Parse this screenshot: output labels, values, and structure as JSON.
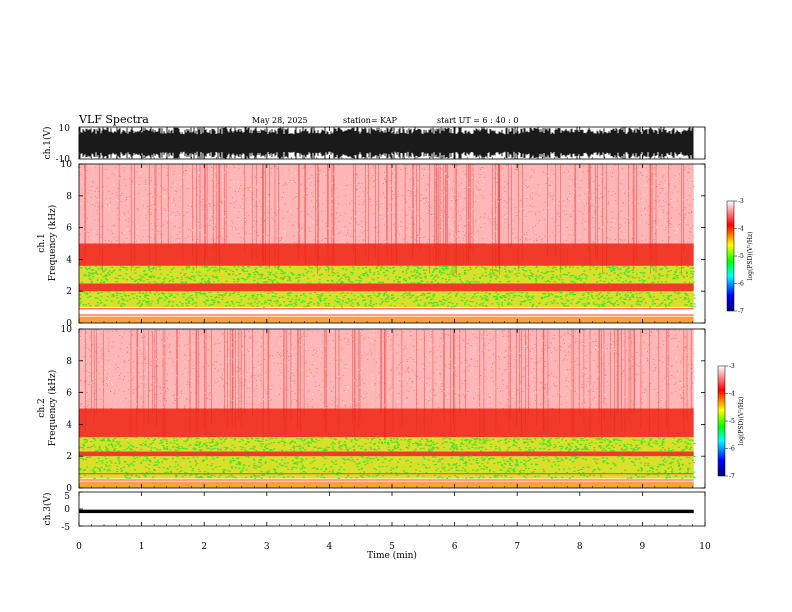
{
  "header": {
    "title": "VLF Spectra",
    "date": "May 28, 2025",
    "station": "station= KAP",
    "start": "start  UT =   6 : 40 : 0"
  },
  "colors": {
    "colormap": [
      "#00007f",
      "#0000ff",
      "#00ffff",
      "#00ff00",
      "#ffff00",
      "#ff0000",
      "#ffffff"
    ]
  },
  "chart_data": [
    {
      "type": "line",
      "title": "",
      "ylabel": "ch.1(V)",
      "ylim": [
        -10,
        10
      ],
      "y_ticks": [
        "10",
        "-10"
      ],
      "description_values": {
        "x_range_min": [
          0,
          9.82
        ],
        "envelope_min": -10,
        "envelope_max": 10
      }
    },
    {
      "type": "heatmap",
      "ylabel_line1": "ch.1",
      "ylabel_line2": "Frequency  (kHz)",
      "ylim": [
        0,
        10
      ],
      "y_ticks": [
        "0",
        "2",
        "4",
        "6",
        "8",
        "10"
      ],
      "colorbar": {
        "label": "log(PSD)(V²/Hz)",
        "range": [
          -7,
          -3
        ],
        "ticks": [
          "-3",
          "-4",
          "-5",
          "-6",
          "-7"
        ]
      },
      "bands_khz": [
        {
          "from": 0,
          "to": 0.4,
          "level": "yellow-red"
        },
        {
          "from": 1.0,
          "to": 2.0,
          "level": "green-yellow"
        },
        {
          "from": 2.0,
          "to": 2.5,
          "level": "red"
        },
        {
          "from": 2.5,
          "to": 3.6,
          "level": "green-yellow"
        },
        {
          "from": 3.6,
          "to": 5.0,
          "level": "red"
        },
        {
          "from": 5.0,
          "to": 10.0,
          "level": "light-red"
        }
      ]
    },
    {
      "type": "heatmap",
      "ylabel_line1": "ch.2",
      "ylabel_line2": "Frequency  (kHz)",
      "ylim": [
        0,
        10
      ],
      "y_ticks": [
        "0",
        "2",
        "4",
        "6",
        "8",
        "10"
      ],
      "colorbar": {
        "label": "log(PSD)(V²/Hz)",
        "range": [
          -7,
          -3
        ],
        "ticks": [
          "-3",
          "-4",
          "-5",
          "-6",
          "-7"
        ]
      },
      "bands_khz": [
        {
          "from": 0,
          "to": 0.4,
          "level": "yellow-red"
        },
        {
          "from": 0.6,
          "to": 2.0,
          "level": "green-yellow"
        },
        {
          "from": 2.0,
          "to": 2.3,
          "level": "red"
        },
        {
          "from": 2.3,
          "to": 3.2,
          "level": "green-yellow"
        },
        {
          "from": 3.2,
          "to": 5.0,
          "level": "red"
        },
        {
          "from": 5.0,
          "to": 10.0,
          "level": "light-red"
        }
      ]
    },
    {
      "type": "line",
      "ylabel": "ch.3(V)",
      "ylim": [
        -5,
        5
      ],
      "y_ticks": [
        "5",
        "0",
        "-5"
      ],
      "band_min": -1.2,
      "band_max": -0.2
    }
  ],
  "x_axis": {
    "label": "Time  (min)",
    "range": [
      0,
      10
    ],
    "ticks": [
      "0",
      "1",
      "2",
      "3",
      "4",
      "5",
      "6",
      "7",
      "8",
      "9",
      "10"
    ],
    "data_end": 9.82
  }
}
